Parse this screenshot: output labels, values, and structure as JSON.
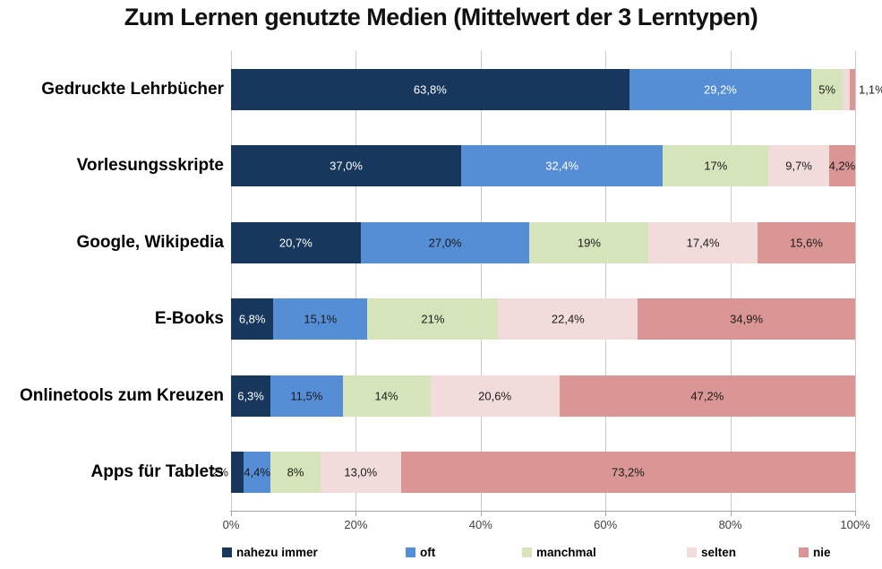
{
  "title": "Zum Lernen genutzte Medien (Mittelwert der 3 Lerntypen)",
  "colors": {
    "nahezu_immer": "#17375D",
    "oft": "#558ED5",
    "manchmal": "#D6E4BC",
    "selten": "#F2DCDB",
    "nie": "#D99694",
    "gridline": "#C9C9C9",
    "axis": "#A6A6A6"
  },
  "chart_data": {
    "type": "bar",
    "stacked": true,
    "orientation": "horizontal",
    "title": "Zum Lernen genutzte Medien (Mittelwert der 3 Lerntypen)",
    "xlim": [
      0,
      100
    ],
    "grid": true,
    "legend_position": "bottom",
    "categories": [
      "Gedruckte Lehrbücher",
      "Vorlesungsskripte",
      "Google, Wikipedia",
      "E-Books",
      "Onlinetools zum Kreuzen",
      "Apps für Tablets"
    ],
    "x_ticks": [
      "0%",
      "20%",
      "40%",
      "60%",
      "80%",
      "100%"
    ],
    "series": [
      {
        "name": "nahezu immer",
        "color": "#17375D",
        "values": [
          63.8,
          37.0,
          20.7,
          6.8,
          6.3,
          2.0
        ],
        "labels": [
          "63,8%",
          "37,0%",
          "20,7%",
          "6,8%",
          "6,3%",
          "2%"
        ],
        "label_colors": [
          "white",
          "white",
          "white",
          "white",
          "white",
          "black"
        ],
        "placements": [
          "inside",
          "inside",
          "inside",
          "inside",
          "inside",
          "outside-left"
        ]
      },
      {
        "name": "oft",
        "color": "#558ED5",
        "values": [
          29.2,
          32.4,
          27.0,
          15.1,
          11.5,
          4.4
        ],
        "labels": [
          "29,2%",
          "32,4%",
          "27,0%",
          "15,1%",
          "11,5%",
          "4,4%"
        ],
        "label_colors": [
          "white",
          "white",
          "black",
          "black",
          "black",
          "black"
        ],
        "placements": [
          "inside",
          "inside",
          "inside",
          "inside",
          "inside",
          "inside"
        ]
      },
      {
        "name": "manchmal",
        "color": "#D6E4BC",
        "values": [
          5.0,
          17.0,
          19.0,
          21.0,
          14.0,
          8.0
        ],
        "labels": [
          "5%",
          "17%",
          "19%",
          "21%",
          "14%",
          "8%"
        ],
        "label_colors": [
          "black",
          "black",
          "black",
          "black",
          "black",
          "black"
        ],
        "placements": [
          "inside",
          "inside",
          "inside",
          "inside",
          "inside",
          "inside"
        ]
      },
      {
        "name": "selten",
        "color": "#F2DCDB",
        "values": [
          1.1,
          9.7,
          17.4,
          22.4,
          20.6,
          13.0
        ],
        "labels": [
          "1,1%",
          "9,7%",
          "17,4%",
          "22,4%",
          "20,6%",
          "13,0%"
        ],
        "label_colors": [
          "black",
          "black",
          "black",
          "black",
          "black",
          "black"
        ],
        "placements": [
          "outside-right",
          "inside",
          "inside",
          "inside",
          "inside",
          "inside"
        ]
      },
      {
        "name": "nie",
        "color": "#D99694",
        "values": [
          0.9,
          4.2,
          15.6,
          34.9,
          47.2,
          73.2
        ],
        "labels": [
          null,
          "4,2%",
          "15,6%",
          "34,9%",
          "47,2%",
          "73,2%"
        ],
        "label_colors": [
          "black",
          "black",
          "black",
          "black",
          "black",
          "black"
        ],
        "placements": [
          "inside",
          "inside",
          "inside",
          "inside",
          "inside",
          "inside"
        ]
      }
    ]
  }
}
